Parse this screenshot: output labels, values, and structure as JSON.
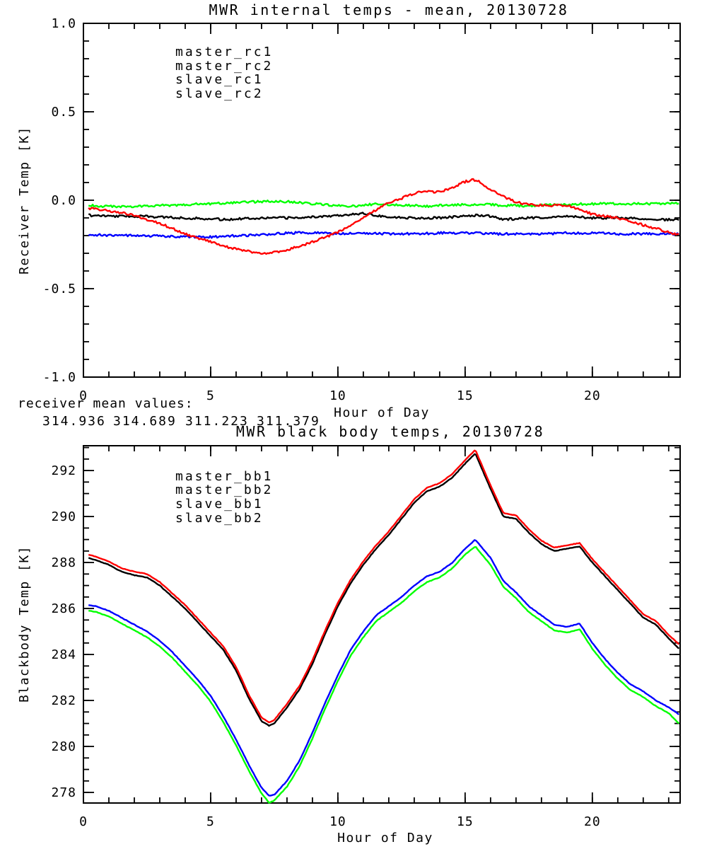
{
  "colors": {
    "black": "#000000",
    "red": "#ff0000",
    "blue": "#0000ff",
    "green": "#00ff00",
    "background": "#ffffff"
  },
  "annotation": {
    "label": "receiver mean values:",
    "values": [
      {
        "text": "314.936",
        "color": "#000000"
      },
      {
        "text": "314.689",
        "color": "#ff0000"
      },
      {
        "text": "311.223",
        "color": "#0000ff"
      },
      {
        "text": "311.379",
        "color": "#00ff00"
      }
    ]
  },
  "chart_data": [
    {
      "type": "line",
      "title": "MWR internal temps - mean, 20130728",
      "xlabel": "Hour of Day",
      "ylabel": "Receiver Temp [K]",
      "xlim": [
        0,
        23.45
      ],
      "ylim": [
        -1.0,
        1.0
      ],
      "xticks": {
        "values": [
          0,
          5,
          10,
          15,
          20
        ],
        "labels": [
          "0",
          "5",
          "10",
          "15",
          "20"
        ]
      },
      "yticks": {
        "values": [
          1.0,
          0.5,
          0.0,
          -0.5,
          -1.0
        ],
        "labels": [
          "1.0",
          "0.5",
          "0.0",
          "-0.5",
          "-1.0"
        ]
      },
      "x_minor_step": 1,
      "y_minor_step": 0.1,
      "grid": false,
      "legend_position": "top-left-inside",
      "legend": [
        {
          "label": "master_rc1",
          "color": "#000000"
        },
        {
          "label": "master_rc2",
          "color": "#ff0000"
        },
        {
          "label": "slave_rc1",
          "color": "#0000ff"
        },
        {
          "label": "slave_rc2",
          "color": "#00ff00"
        }
      ],
      "x": [
        0.2,
        0.5,
        1,
        1.5,
        2,
        2.5,
        3,
        3.5,
        4,
        4.5,
        5,
        5.5,
        6,
        6.5,
        7,
        7.5,
        8,
        8.5,
        9,
        9.5,
        10,
        10.5,
        11,
        11.5,
        12,
        12.5,
        13,
        13.5,
        14,
        14.5,
        15,
        15.3,
        15.5,
        16,
        16.5,
        17,
        17.5,
        18,
        18.5,
        19,
        19.5,
        20,
        20.5,
        21,
        21.5,
        22,
        22.5,
        23,
        23.4
      ],
      "series": [
        {
          "name": "master_rc1",
          "color": "#000000",
          "values": [
            -0.085,
            -0.087,
            -0.09,
            -0.09,
            -0.09,
            -0.092,
            -0.095,
            -0.098,
            -0.1,
            -0.103,
            -0.105,
            -0.11,
            -0.105,
            -0.102,
            -0.1,
            -0.1,
            -0.1,
            -0.098,
            -0.095,
            -0.09,
            -0.085,
            -0.08,
            -0.075,
            -0.085,
            -0.095,
            -0.098,
            -0.1,
            -0.1,
            -0.1,
            -0.095,
            -0.09,
            -0.088,
            -0.085,
            -0.09,
            -0.11,
            -0.105,
            -0.1,
            -0.098,
            -0.095,
            -0.09,
            -0.095,
            -0.1,
            -0.1,
            -0.1,
            -0.102,
            -0.105,
            -0.107,
            -0.11,
            -0.11
          ]
        },
        {
          "name": "master_rc2",
          "color": "#ff0000",
          "values": [
            -0.045,
            -0.05,
            -0.06,
            -0.07,
            -0.085,
            -0.11,
            -0.13,
            -0.16,
            -0.19,
            -0.215,
            -0.235,
            -0.26,
            -0.275,
            -0.29,
            -0.3,
            -0.295,
            -0.28,
            -0.26,
            -0.235,
            -0.21,
            -0.18,
            -0.14,
            -0.1,
            -0.055,
            -0.015,
            0.01,
            0.04,
            0.05,
            0.045,
            0.07,
            0.105,
            0.115,
            0.11,
            0.06,
            0.02,
            -0.01,
            -0.025,
            -0.03,
            -0.03,
            -0.03,
            -0.05,
            -0.08,
            -0.09,
            -0.1,
            -0.12,
            -0.14,
            -0.16,
            -0.18,
            -0.195
          ]
        },
        {
          "name": "slave_rc1",
          "color": "#0000ff",
          "values": [
            -0.195,
            -0.196,
            -0.198,
            -0.2,
            -0.2,
            -0.202,
            -0.203,
            -0.205,
            -0.205,
            -0.207,
            -0.208,
            -0.205,
            -0.2,
            -0.198,
            -0.195,
            -0.19,
            -0.185,
            -0.185,
            -0.185,
            -0.187,
            -0.19,
            -0.188,
            -0.185,
            -0.187,
            -0.19,
            -0.19,
            -0.19,
            -0.188,
            -0.185,
            -0.185,
            -0.185,
            -0.186,
            -0.187,
            -0.19,
            -0.19,
            -0.19,
            -0.19,
            -0.19,
            -0.188,
            -0.185,
            -0.186,
            -0.185,
            -0.187,
            -0.19,
            -0.19,
            -0.19,
            -0.19,
            -0.19,
            -0.19
          ]
        },
        {
          "name": "slave_rc2",
          "color": "#00ff00",
          "values": [
            -0.03,
            -0.032,
            -0.035,
            -0.035,
            -0.035,
            -0.033,
            -0.03,
            -0.028,
            -0.025,
            -0.022,
            -0.02,
            -0.016,
            -0.012,
            -0.01,
            -0.008,
            -0.005,
            -0.008,
            -0.013,
            -0.02,
            -0.025,
            -0.03,
            -0.035,
            -0.03,
            -0.02,
            -0.025,
            -0.028,
            -0.03,
            -0.035,
            -0.03,
            -0.027,
            -0.025,
            -0.025,
            -0.025,
            -0.025,
            -0.03,
            -0.03,
            -0.033,
            -0.028,
            -0.026,
            -0.025,
            -0.022,
            -0.02,
            -0.02,
            -0.02,
            -0.02,
            -0.02,
            -0.019,
            -0.018,
            -0.02
          ]
        }
      ]
    },
    {
      "type": "line",
      "title": "MWR black body temps, 20130728",
      "xlabel": "Hour of Day",
      "ylabel": "Blackbody Temp [K]",
      "xlim": [
        0,
        23.45
      ],
      "ylim": [
        277.54,
        293.08
      ],
      "xticks": {
        "values": [
          0,
          5,
          10,
          15,
          20
        ],
        "labels": [
          "0",
          "5",
          "10",
          "15",
          "20"
        ]
      },
      "yticks": {
        "values": [
          292,
          290,
          288,
          286,
          284,
          282,
          280,
          278
        ],
        "labels": [
          "292",
          "290",
          "288",
          "286",
          "284",
          "282",
          "280",
          "278"
        ]
      },
      "x_minor_step": 1,
      "y_minor_step": 0.5,
      "grid": false,
      "legend_position": "top-left-inside",
      "legend": [
        {
          "label": "master_bb1",
          "color": "#000000"
        },
        {
          "label": "master_bb2",
          "color": "#ff0000"
        },
        {
          "label": "slave_bb1",
          "color": "#0000ff"
        },
        {
          "label": "slave_bb2",
          "color": "#00ff00"
        }
      ],
      "x": [
        0.2,
        0.5,
        1,
        1.5,
        2,
        2.5,
        3,
        3.5,
        4,
        4.5,
        5,
        5.5,
        6,
        6.5,
        7,
        7.3,
        7.5,
        8,
        8.5,
        9,
        9.5,
        10,
        10.5,
        11,
        11.5,
        12,
        12.5,
        13,
        13.5,
        14,
        14.5,
        15,
        15.4,
        16,
        16.5,
        17,
        17.5,
        18,
        18.5,
        19,
        19.5,
        20,
        20.5,
        21,
        21.5,
        22,
        22.5,
        23,
        23.4
      ],
      "series": [
        {
          "name": "master_bb1",
          "color": "#000000",
          "values": [
            288.2,
            288.1,
            287.9,
            287.6,
            287.45,
            287.35,
            287.0,
            286.5,
            286.0,
            285.4,
            284.8,
            284.2,
            283.3,
            282.1,
            281.1,
            280.9,
            281.0,
            281.7,
            282.5,
            283.6,
            284.9,
            286.1,
            287.1,
            287.9,
            288.6,
            289.2,
            289.9,
            290.6,
            291.1,
            291.3,
            291.7,
            292.3,
            292.75,
            291.2,
            290.0,
            289.9,
            289.3,
            288.8,
            288.5,
            288.6,
            288.7,
            288.0,
            287.4,
            286.8,
            286.2,
            285.6,
            285.3,
            284.7,
            284.25
          ]
        },
        {
          "name": "master_bb2",
          "color": "#ff0000",
          "values": [
            288.35,
            288.25,
            288.05,
            287.75,
            287.6,
            287.5,
            287.15,
            286.65,
            286.15,
            285.55,
            284.95,
            284.35,
            283.45,
            282.25,
            281.25,
            281.05,
            281.15,
            281.85,
            282.65,
            283.75,
            285.05,
            286.25,
            287.25,
            288.05,
            288.75,
            289.35,
            290.05,
            290.75,
            291.25,
            291.45,
            291.85,
            292.45,
            292.9,
            291.35,
            290.15,
            290.05,
            289.45,
            288.95,
            288.65,
            288.75,
            288.85,
            288.15,
            287.55,
            286.95,
            286.35,
            285.75,
            285.45,
            284.85,
            284.45
          ]
        },
        {
          "name": "slave_bb1",
          "color": "#0000ff",
          "values": [
            286.15,
            286.1,
            285.9,
            285.6,
            285.3,
            285.0,
            284.6,
            284.1,
            283.5,
            282.9,
            282.2,
            281.3,
            280.3,
            279.2,
            278.2,
            277.85,
            277.9,
            278.5,
            279.4,
            280.6,
            281.9,
            283.1,
            284.2,
            285.0,
            285.7,
            286.1,
            286.5,
            287.0,
            287.4,
            287.6,
            288.0,
            288.6,
            289.0,
            288.2,
            287.2,
            286.7,
            286.1,
            285.7,
            285.3,
            285.2,
            285.35,
            284.5,
            283.8,
            283.2,
            282.7,
            282.4,
            282.0,
            281.7,
            281.4
          ]
        },
        {
          "name": "slave_bb2",
          "color": "#00ff00",
          "values": [
            285.9,
            285.85,
            285.65,
            285.35,
            285.05,
            284.75,
            284.35,
            283.85,
            283.25,
            282.65,
            281.95,
            281.05,
            280.05,
            278.95,
            277.95,
            277.55,
            277.65,
            278.25,
            279.15,
            280.35,
            281.65,
            282.85,
            283.95,
            284.75,
            285.45,
            285.85,
            286.25,
            286.75,
            287.15,
            287.35,
            287.75,
            288.35,
            288.7,
            287.9,
            286.95,
            286.45,
            285.85,
            285.45,
            285.05,
            284.95,
            285.1,
            284.25,
            283.55,
            282.95,
            282.45,
            282.15,
            281.75,
            281.45,
            281.0
          ]
        }
      ]
    }
  ]
}
